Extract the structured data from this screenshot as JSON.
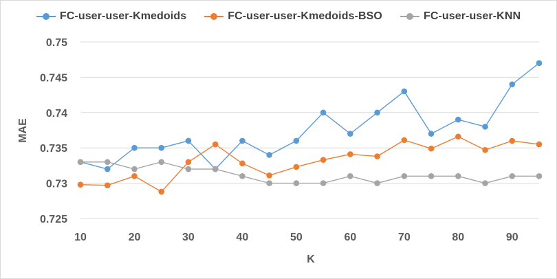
{
  "chart_data": {
    "type": "line",
    "title": "",
    "xlabel": "K",
    "ylabel": "MAE",
    "x": [
      10,
      15,
      20,
      25,
      30,
      35,
      40,
      45,
      50,
      55,
      60,
      65,
      70,
      75,
      80,
      85,
      90,
      95
    ],
    "x_ticks": [
      "10",
      "20",
      "30",
      "40",
      "50",
      "60",
      "70",
      "80",
      "90"
    ],
    "y_ticks": [
      "0.725",
      "0.73",
      "0.735",
      "0.74",
      "0.745",
      "0.75"
    ],
    "ylim": [
      0.725,
      0.75
    ],
    "xlim": [
      10,
      95
    ],
    "grid": "horizontal",
    "legend_position": "top",
    "series": [
      {
        "name": "FC-user-user-Kmedoids",
        "color": "#5b9bd5",
        "values": [
          0.733,
          0.732,
          0.735,
          0.735,
          0.736,
          0.732,
          0.736,
          0.734,
          0.736,
          0.74,
          0.737,
          0.74,
          0.743,
          0.737,
          0.739,
          0.738,
          0.744,
          0.747
        ]
      },
      {
        "name": "FC-user-user-Kmedoids-BSO",
        "color": "#ed7d31",
        "values": [
          0.7298,
          0.7297,
          0.731,
          0.7288,
          0.733,
          0.7355,
          0.7328,
          0.7311,
          0.7323,
          0.7333,
          0.7341,
          0.7338,
          0.7361,
          0.7349,
          0.7366,
          0.7347,
          0.736,
          0.7355
        ]
      },
      {
        "name": "FC-user-user-KNN",
        "color": "#a5a5a5",
        "values": [
          0.733,
          0.733,
          0.732,
          0.733,
          0.732,
          0.732,
          0.731,
          0.73,
          0.73,
          0.73,
          0.731,
          0.73,
          0.731,
          0.731,
          0.731,
          0.73,
          0.731,
          0.731
        ]
      }
    ]
  }
}
